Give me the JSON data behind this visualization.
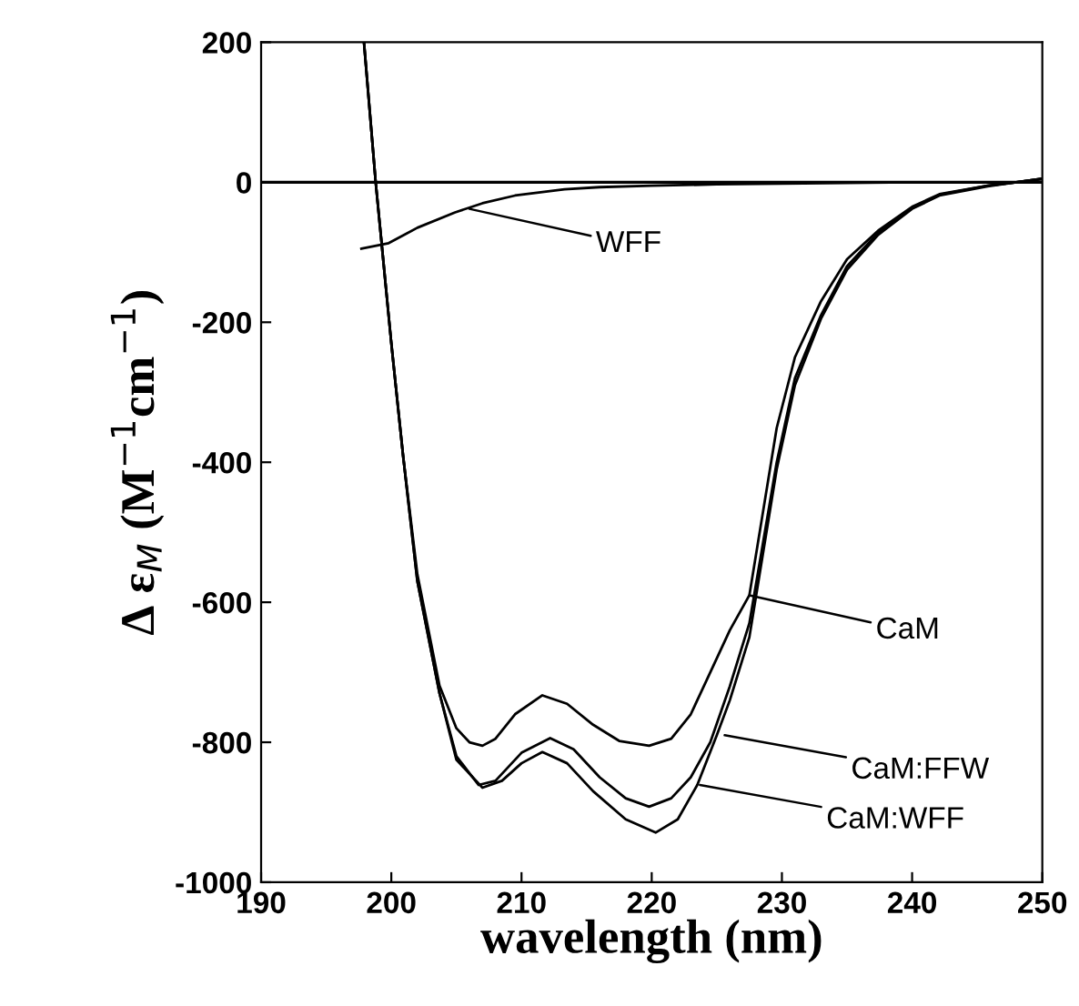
{
  "chart_data": {
    "type": "line",
    "xlabel": "wavelength (nm)",
    "ylabel": "Δ ε$_{M}$ (M$^{−1}$cm$^{−1}$)",
    "xlim": [
      190,
      250
    ],
    "xticks": [
      190,
      200,
      210,
      220,
      230,
      240,
      250
    ],
    "ylim": [
      -1000,
      200
    ],
    "yticks": [
      -1000,
      -800,
      -600,
      -400,
      -200,
      0,
      200
    ],
    "grid": false,
    "legend": false,
    "marker": "none",
    "line_style": "solid",
    "ref_lines": [
      {
        "axis": "y",
        "value": 0,
        "color": "#000000"
      }
    ],
    "series": [
      {
        "color": "#000000",
        "x": [
          197.9,
          198.8,
          200,
          200.9,
          202,
          203.7,
          205,
          206,
          207,
          208,
          209.5,
          211.6,
          213.5,
          215.5,
          217.5,
          219.8,
          221.5,
          223,
          224.5,
          226,
          227.5,
          229.6,
          231,
          233,
          235,
          237.4,
          240,
          242.1,
          245.8,
          248,
          250
        ],
        "values": [
          200,
          0,
          -230,
          -390,
          -560,
          -719,
          -780,
          -800,
          -805,
          -795,
          -760,
          -733,
          -745,
          -775,
          -798,
          -805,
          -795,
          -760,
          -700,
          -640,
          -590,
          -351,
          -250,
          -170,
          -110,
          -69,
          -35,
          -17,
          -5,
          0,
          5
        ]
      },
      {
        "color": "#000000",
        "x": [
          197.9,
          198.8,
          200,
          200.9,
          202,
          203.7,
          205,
          206.7,
          208,
          210,
          212.2,
          214,
          216,
          218,
          219.8,
          221.5,
          223,
          224.5,
          226,
          227.5,
          229.6,
          231,
          233,
          235,
          237.4,
          240,
          242.1,
          245.8,
          248,
          250
        ],
        "values": [
          200,
          0,
          -230,
          -390,
          -570,
          -730,
          -820,
          -861,
          -855,
          -815,
          -794,
          -810,
          -850,
          -880,
          -892,
          -880,
          -850,
          -800,
          -720,
          -630,
          -400,
          -280,
          -190,
          -120,
          -72,
          -37,
          -18,
          -5,
          0,
          5
        ]
      },
      {
        "color": "#000000",
        "x": [
          197.9,
          198.8,
          200,
          200.9,
          202,
          203.7,
          205,
          207,
          208.5,
          210,
          211.6,
          213.5,
          215.5,
          218,
          220.3,
          222,
          223.5,
          225,
          226,
          227.5,
          229.6,
          231,
          233,
          235,
          237.4,
          240,
          242.1,
          245.8,
          248,
          250
        ],
        "values": [
          200,
          0,
          -230,
          -390,
          -570,
          -730,
          -825,
          -865,
          -855,
          -830,
          -814,
          -830,
          -870,
          -910,
          -929,
          -910,
          -861,
          -790,
          -740,
          -650,
          -410,
          -290,
          -195,
          -125,
          -75,
          -38,
          -19,
          -6,
          0,
          5
        ]
      },
      {
        "color": "#000000",
        "x": [
          197.7,
          199.8,
          202,
          204.9,
          207,
          209.5,
          213.3,
          216,
          220,
          225,
          230,
          235,
          240,
          245,
          250
        ],
        "values": [
          -95,
          -87,
          -65,
          -43,
          -30,
          -19,
          -10,
          -7,
          -5,
          -3,
          -2,
          -1,
          0,
          0,
          0
        ]
      }
    ],
    "annotations": [
      {
        "text": "CaM",
        "x": 227.5,
        "y": -590
      },
      {
        "text": "CaM:FFW",
        "x": 225.6,
        "y": -790
      },
      {
        "text": "CaM:WFF",
        "x": 223.7,
        "y": -861
      },
      {
        "text": "WFF",
        "x": 206,
        "y": -38
      }
    ]
  }
}
